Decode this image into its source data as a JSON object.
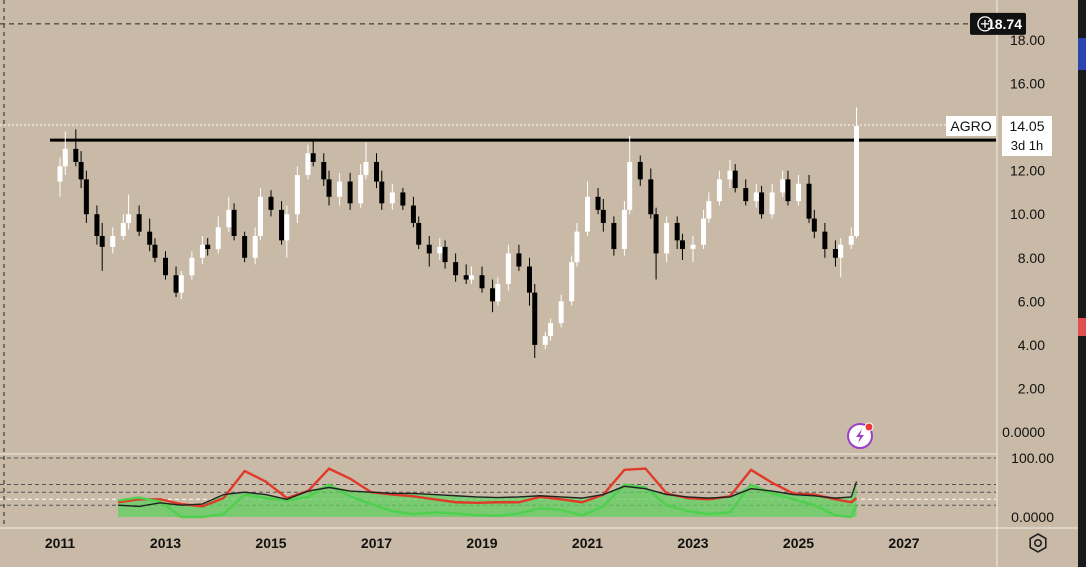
{
  "price_axis": {
    "ticks": [
      "18.00",
      "16.00",
      "14.00",
      "12.00",
      "10.00",
      "8.00",
      "6.00",
      "4.00",
      "2.00",
      "0.0000"
    ],
    "tick_values": [
      18,
      16,
      14,
      12,
      10,
      8,
      6,
      4,
      2,
      0
    ]
  },
  "oscillator_axis": {
    "ticks": [
      "100.00",
      "0.0000"
    ],
    "tick_values": [
      100,
      0
    ]
  },
  "time_axis": {
    "ticks": [
      "2011",
      "2013",
      "2015",
      "2017",
      "2019",
      "2021",
      "2023",
      "2025",
      "2027"
    ],
    "tick_values": [
      2011,
      2013,
      2015,
      2017,
      2019,
      2021,
      2023,
      2025,
      2027
    ]
  },
  "crosshair_badge": {
    "value": "18.74",
    "icon": "plus-circle-icon"
  },
  "symbol_tag": {
    "symbol": "AGRO",
    "price": "14.05",
    "countdown": "3d 1h"
  },
  "colors": {
    "background": "#c8baa6",
    "bull": "#ffffff",
    "bear": "#000000",
    "osc_red": "#e03a2a",
    "osc_green": "#4fd04f",
    "osc_dark": "#222222",
    "osc_fill": "#5fcf5f"
  },
  "chart_data": [
    {
      "type": "candlestick",
      "symbol": "AGRO",
      "ylim": [
        0,
        19.5
      ],
      "xlim": [
        2010.2,
        2027.6
      ],
      "resistance_line": 13.4,
      "last_price": 14.05,
      "crosshair_level": 18.74,
      "x": [
        2011.0,
        2011.1,
        2011.3,
        2011.4,
        2011.5,
        2011.7,
        2011.8,
        2012.0,
        2012.2,
        2012.3,
        2012.5,
        2012.7,
        2012.8,
        2013.0,
        2013.2,
        2013.3,
        2013.5,
        2013.7,
        2013.8,
        2014.0,
        2014.2,
        2014.3,
        2014.5,
        2014.7,
        2014.8,
        2015.0,
        2015.2,
        2015.3,
        2015.5,
        2015.7,
        2015.8,
        2016.0,
        2016.1,
        2016.3,
        2016.5,
        2016.7,
        2016.8,
        2017.0,
        2017.1,
        2017.3,
        2017.5,
        2017.7,
        2017.8,
        2018.0,
        2018.2,
        2018.3,
        2018.5,
        2018.7,
        2018.8,
        2019.0,
        2019.2,
        2019.3,
        2019.5,
        2019.7,
        2019.9,
        2020.0,
        2020.2,
        2020.3,
        2020.5,
        2020.7,
        2020.8,
        2021.0,
        2021.2,
        2021.3,
        2021.5,
        2021.7,
        2021.8,
        2022.0,
        2022.2,
        2022.3,
        2022.5,
        2022.7,
        2022.8,
        2023.0,
        2023.2,
        2023.3,
        2023.5,
        2023.7,
        2023.8,
        2024.0,
        2024.2,
        2024.3,
        2024.5,
        2024.7,
        2024.8,
        2025.0,
        2025.2,
        2025.3,
        2025.5,
        2025.7,
        2025.8,
        2026.0,
        2026.1
      ],
      "open": [
        11.5,
        12.2,
        13.0,
        12.4,
        11.6,
        10.0,
        9.0,
        8.5,
        9.0,
        9.6,
        10.0,
        9.2,
        8.6,
        8.0,
        7.2,
        6.4,
        7.2,
        8.0,
        8.6,
        8.4,
        9.4,
        10.2,
        9.0,
        8.0,
        9.0,
        10.8,
        10.2,
        8.8,
        10.0,
        11.8,
        12.8,
        12.4,
        11.6,
        10.8,
        11.5,
        10.5,
        11.8,
        12.4,
        11.5,
        10.5,
        11.0,
        10.4,
        9.6,
        8.6,
        8.2,
        8.5,
        7.8,
        7.2,
        7.0,
        7.2,
        6.6,
        6.0,
        6.8,
        8.2,
        7.6,
        6.4,
        4.0,
        4.4,
        5.0,
        6.0,
        7.8,
        9.2,
        10.8,
        10.2,
        9.6,
        8.4,
        10.2,
        12.4,
        11.6,
        10.0,
        8.2,
        9.6,
        8.8,
        8.4,
        8.6,
        9.8,
        10.6,
        11.6,
        12.0,
        11.2,
        10.6,
        11.0,
        10.0,
        11.0,
        11.6,
        10.6,
        11.4,
        9.8,
        9.2,
        8.4,
        8.0,
        8.6,
        9.0
      ],
      "close": [
        12.2,
        13.0,
        12.4,
        11.6,
        10.0,
        9.0,
        8.5,
        9.0,
        9.6,
        10.0,
        9.2,
        8.6,
        8.0,
        7.2,
        6.4,
        7.2,
        8.0,
        8.6,
        8.4,
        9.4,
        10.2,
        9.0,
        8.0,
        9.0,
        10.8,
        10.2,
        8.8,
        10.0,
        11.8,
        12.8,
        12.4,
        11.6,
        10.8,
        11.5,
        10.5,
        11.8,
        12.4,
        11.5,
        10.5,
        11.0,
        10.4,
        9.6,
        8.6,
        8.2,
        8.5,
        7.8,
        7.2,
        7.0,
        7.2,
        6.6,
        6.0,
        6.8,
        8.2,
        7.6,
        6.4,
        4.0,
        4.4,
        5.0,
        6.0,
        7.8,
        9.2,
        10.8,
        10.2,
        9.6,
        8.4,
        10.2,
        12.4,
        11.6,
        10.0,
        8.2,
        9.6,
        8.8,
        8.4,
        8.6,
        9.8,
        10.6,
        11.6,
        12.0,
        11.2,
        10.6,
        11.0,
        10.0,
        11.0,
        11.6,
        10.6,
        11.4,
        9.8,
        9.2,
        8.4,
        8.0,
        8.6,
        9.0,
        14.05
      ],
      "high": [
        12.6,
        13.8,
        13.9,
        12.9,
        12.0,
        10.4,
        9.6,
        9.4,
        10.0,
        10.9,
        10.4,
        9.8,
        8.9,
        8.3,
        7.6,
        7.4,
        8.3,
        9.0,
        8.9,
        9.9,
        10.8,
        10.5,
        9.2,
        9.4,
        11.2,
        11.1,
        10.6,
        10.4,
        12.2,
        13.2,
        13.4,
        12.8,
        12.0,
        11.9,
        11.9,
        12.3,
        13.3,
        12.8,
        12.0,
        11.4,
        11.2,
        10.8,
        9.9,
        9.0,
        8.9,
        8.8,
        8.2,
        7.7,
        7.6,
        7.6,
        7.0,
        7.1,
        8.6,
        8.6,
        8.0,
        6.8,
        4.6,
        5.2,
        6.3,
        8.1,
        9.6,
        11.5,
        11.2,
        10.7,
        9.9,
        10.6,
        13.6,
        12.7,
        12.1,
        10.3,
        9.9,
        9.9,
        9.1,
        9.0,
        10.2,
        11.0,
        12.0,
        12.5,
        12.3,
        11.6,
        11.4,
        11.3,
        11.4,
        12.0,
        12.0,
        11.8,
        11.8,
        10.2,
        9.6,
        8.8,
        8.9,
        9.4,
        14.9
      ],
      "low": [
        10.8,
        11.8,
        12.2,
        11.2,
        9.6,
        8.6,
        7.4,
        8.2,
        8.8,
        9.3,
        9.0,
        8.3,
        7.8,
        7.0,
        6.2,
        6.1,
        7.0,
        7.7,
        8.1,
        8.2,
        9.2,
        8.8,
        7.8,
        7.7,
        8.8,
        9.9,
        8.6,
        8.0,
        9.6,
        11.6,
        12.2,
        11.3,
        10.4,
        10.4,
        10.2,
        10.3,
        11.6,
        11.2,
        10.2,
        10.2,
        10.2,
        9.4,
        8.4,
        7.6,
        7.9,
        7.5,
        6.9,
        6.8,
        6.8,
        6.4,
        5.5,
        5.8,
        6.5,
        7.4,
        5.8,
        3.4,
        3.8,
        4.2,
        4.8,
        5.8,
        7.6,
        9.0,
        10.0,
        9.2,
        8.1,
        8.1,
        10.0,
        11.3,
        9.8,
        7.0,
        7.8,
        8.4,
        7.9,
        7.8,
        8.4,
        9.6,
        10.4,
        11.2,
        11.0,
        10.4,
        10.3,
        9.8,
        9.8,
        10.8,
        10.4,
        10.4,
        9.6,
        8.9,
        8.0,
        7.6,
        7.1,
        8.4,
        8.9
      ]
    },
    {
      "type": "line",
      "ylim": [
        -15,
        130
      ],
      "x": [
        2012.1,
        2012.5,
        2012.9,
        2013.3,
        2013.7,
        2014.1,
        2014.5,
        2014.9,
        2015.3,
        2015.7,
        2016.1,
        2016.5,
        2016.9,
        2017.3,
        2017.7,
        2018.1,
        2018.5,
        2018.9,
        2019.3,
        2019.7,
        2020.1,
        2020.5,
        2020.9,
        2021.3,
        2021.7,
        2022.1,
        2022.5,
        2022.9,
        2023.3,
        2023.7,
        2024.1,
        2024.5,
        2024.9,
        2025.3,
        2025.7,
        2026.0,
        2026.1
      ],
      "series": [
        {
          "color": "#e03a2a",
          "values": [
            25,
            30,
            30,
            22,
            18,
            32,
            78,
            60,
            32,
            44,
            82,
            65,
            42,
            38,
            35,
            30,
            25,
            24,
            25,
            25,
            34,
            30,
            25,
            38,
            80,
            82,
            40,
            32,
            30,
            35,
            80,
            58,
            40,
            38,
            30,
            25,
            32
          ]
        },
        {
          "color": "#4fd04f",
          "values": [
            28,
            33,
            26,
            0,
            0,
            5,
            38,
            32,
            28,
            34,
            55,
            35,
            22,
            10,
            5,
            8,
            6,
            3,
            2,
            6,
            15,
            12,
            3,
            18,
            55,
            50,
            20,
            10,
            5,
            8,
            55,
            40,
            30,
            20,
            3,
            0,
            20
          ]
        },
        {
          "color": "#222222",
          "values": [
            20,
            18,
            24,
            20,
            22,
            38,
            42,
            38,
            30,
            44,
            50,
            44,
            42,
            40,
            40,
            38,
            36,
            34,
            33,
            34,
            36,
            34,
            32,
            38,
            52,
            48,
            38,
            34,
            32,
            34,
            48,
            44,
            38,
            36,
            32,
            34,
            60
          ]
        }
      ]
    }
  ]
}
